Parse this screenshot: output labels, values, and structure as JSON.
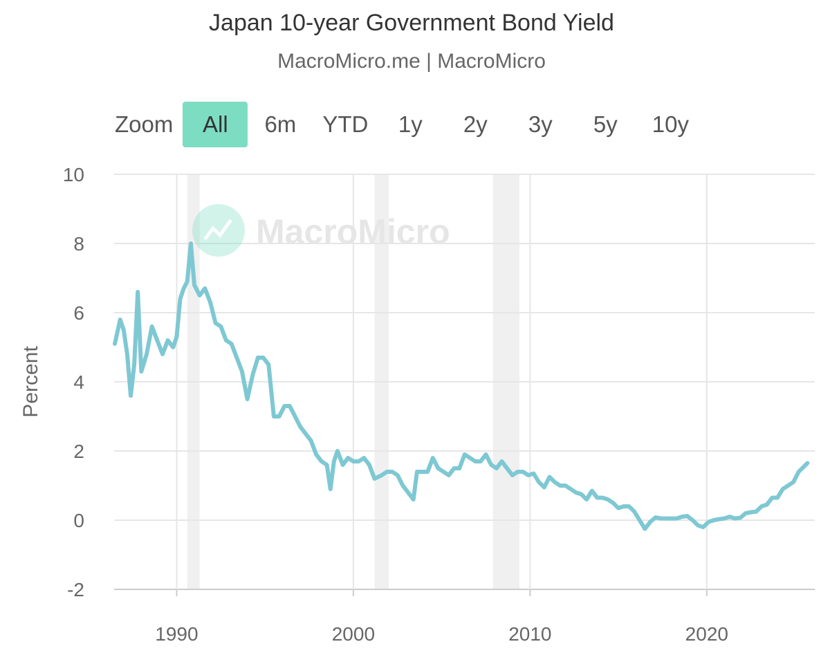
{
  "chart_data": {
    "type": "line",
    "title": "Japan 10-year Government Bond Yield",
    "subtitle": "MacroMicro.me | MacroMicro",
    "ylabel": "Percent",
    "xlabel": "",
    "ylim": [
      -2,
      10
    ],
    "xlim": [
      1986.5,
      2025.8
    ],
    "yticks": [
      "10",
      "8",
      "6",
      "4",
      "2",
      "0",
      "-2"
    ],
    "xticks": [
      "1990",
      "2000",
      "2010",
      "2020"
    ],
    "grid": true,
    "series_color": "#7ec8d3",
    "recessions": [
      [
        1990.6,
        1991.3
      ],
      [
        2001.2,
        2002.0
      ],
      [
        2007.9,
        2009.4
      ]
    ],
    "series": [
      {
        "values": [
          [
            1986.5,
            5.1
          ],
          [
            1986.8,
            5.8
          ],
          [
            1987.0,
            5.5
          ],
          [
            1987.2,
            4.8
          ],
          [
            1987.4,
            3.6
          ],
          [
            1987.6,
            4.5
          ],
          [
            1987.8,
            6.6
          ],
          [
            1988.0,
            4.3
          ],
          [
            1988.3,
            4.8
          ],
          [
            1988.6,
            5.6
          ],
          [
            1988.9,
            5.2
          ],
          [
            1989.2,
            4.8
          ],
          [
            1989.5,
            5.2
          ],
          [
            1989.8,
            5.0
          ],
          [
            1990.0,
            5.3
          ],
          [
            1990.2,
            6.4
          ],
          [
            1990.4,
            6.7
          ],
          [
            1990.6,
            6.9
          ],
          [
            1990.8,
            8.0
          ],
          [
            1991.0,
            6.8
          ],
          [
            1991.3,
            6.5
          ],
          [
            1991.6,
            6.7
          ],
          [
            1991.9,
            6.3
          ],
          [
            1992.2,
            5.7
          ],
          [
            1992.5,
            5.6
          ],
          [
            1992.8,
            5.2
          ],
          [
            1993.1,
            5.1
          ],
          [
            1993.4,
            4.7
          ],
          [
            1993.7,
            4.3
          ],
          [
            1994.0,
            3.5
          ],
          [
            1994.3,
            4.2
          ],
          [
            1994.6,
            4.7
          ],
          [
            1994.9,
            4.7
          ],
          [
            1995.2,
            4.5
          ],
          [
            1995.5,
            3.0
          ],
          [
            1995.8,
            3.0
          ],
          [
            1996.1,
            3.3
          ],
          [
            1996.4,
            3.3
          ],
          [
            1996.7,
            3.0
          ],
          [
            1997.0,
            2.7
          ],
          [
            1997.3,
            2.5
          ],
          [
            1997.6,
            2.3
          ],
          [
            1997.9,
            1.9
          ],
          [
            1998.2,
            1.7
          ],
          [
            1998.5,
            1.6
          ],
          [
            1998.7,
            0.9
          ],
          [
            1998.9,
            1.7
          ],
          [
            1999.1,
            2.0
          ],
          [
            1999.4,
            1.6
          ],
          [
            1999.7,
            1.8
          ],
          [
            2000.0,
            1.7
          ],
          [
            2000.3,
            1.7
          ],
          [
            2000.6,
            1.8
          ],
          [
            2000.9,
            1.6
          ],
          [
            2001.2,
            1.2
          ],
          [
            2001.6,
            1.3
          ],
          [
            2001.9,
            1.4
          ],
          [
            2002.2,
            1.4
          ],
          [
            2002.5,
            1.3
          ],
          [
            2002.8,
            1.0
          ],
          [
            2003.1,
            0.8
          ],
          [
            2003.4,
            0.6
          ],
          [
            2003.6,
            1.4
          ],
          [
            2003.9,
            1.4
          ],
          [
            2004.2,
            1.4
          ],
          [
            2004.5,
            1.8
          ],
          [
            2004.8,
            1.5
          ],
          [
            2005.1,
            1.4
          ],
          [
            2005.4,
            1.3
          ],
          [
            2005.7,
            1.5
          ],
          [
            2006.0,
            1.5
          ],
          [
            2006.3,
            1.9
          ],
          [
            2006.6,
            1.8
          ],
          [
            2006.9,
            1.7
          ],
          [
            2007.2,
            1.7
          ],
          [
            2007.5,
            1.9
          ],
          [
            2007.8,
            1.6
          ],
          [
            2008.1,
            1.5
          ],
          [
            2008.4,
            1.7
          ],
          [
            2008.7,
            1.5
          ],
          [
            2009.0,
            1.3
          ],
          [
            2009.3,
            1.4
          ],
          [
            2009.6,
            1.4
          ],
          [
            2009.9,
            1.3
          ],
          [
            2010.2,
            1.35
          ],
          [
            2010.5,
            1.1
          ],
          [
            2010.8,
            0.95
          ],
          [
            2011.1,
            1.25
          ],
          [
            2011.4,
            1.1
          ],
          [
            2011.7,
            1.0
          ],
          [
            2012.0,
            1.0
          ],
          [
            2012.3,
            0.9
          ],
          [
            2012.6,
            0.8
          ],
          [
            2012.9,
            0.75
          ],
          [
            2013.2,
            0.6
          ],
          [
            2013.5,
            0.85
          ],
          [
            2013.8,
            0.65
          ],
          [
            2014.1,
            0.65
          ],
          [
            2014.4,
            0.6
          ],
          [
            2014.7,
            0.5
          ],
          [
            2015.0,
            0.35
          ],
          [
            2015.3,
            0.4
          ],
          [
            2015.6,
            0.4
          ],
          [
            2015.9,
            0.25
          ],
          [
            2016.2,
            0.0
          ],
          [
            2016.5,
            -0.25
          ],
          [
            2016.8,
            -0.05
          ],
          [
            2017.1,
            0.08
          ],
          [
            2017.4,
            0.05
          ],
          [
            2017.7,
            0.05
          ],
          [
            2018.0,
            0.05
          ],
          [
            2018.3,
            0.05
          ],
          [
            2018.6,
            0.1
          ],
          [
            2018.9,
            0.12
          ],
          [
            2019.2,
            0.0
          ],
          [
            2019.5,
            -0.15
          ],
          [
            2019.8,
            -0.2
          ],
          [
            2020.1,
            -0.05
          ],
          [
            2020.4,
            0.0
          ],
          [
            2020.7,
            0.03
          ],
          [
            2021.0,
            0.05
          ],
          [
            2021.3,
            0.1
          ],
          [
            2021.6,
            0.05
          ],
          [
            2021.9,
            0.07
          ],
          [
            2022.2,
            0.2
          ],
          [
            2022.5,
            0.23
          ],
          [
            2022.8,
            0.25
          ],
          [
            2023.1,
            0.4
          ],
          [
            2023.4,
            0.45
          ],
          [
            2023.7,
            0.65
          ],
          [
            2024.0,
            0.65
          ],
          [
            2024.3,
            0.9
          ],
          [
            2024.6,
            1.0
          ],
          [
            2024.9,
            1.1
          ],
          [
            2025.2,
            1.4
          ],
          [
            2025.5,
            1.55
          ],
          [
            2025.7,
            1.65
          ]
        ]
      }
    ]
  },
  "zoom": {
    "label": "Zoom",
    "buttons": [
      "All",
      "6m",
      "YTD",
      "1y",
      "2y",
      "3y",
      "5y",
      "10y"
    ],
    "active": "All"
  },
  "watermark": {
    "text": "MacroMicro",
    "icon": "chart-trend-icon",
    "color": "#7dddc3"
  }
}
